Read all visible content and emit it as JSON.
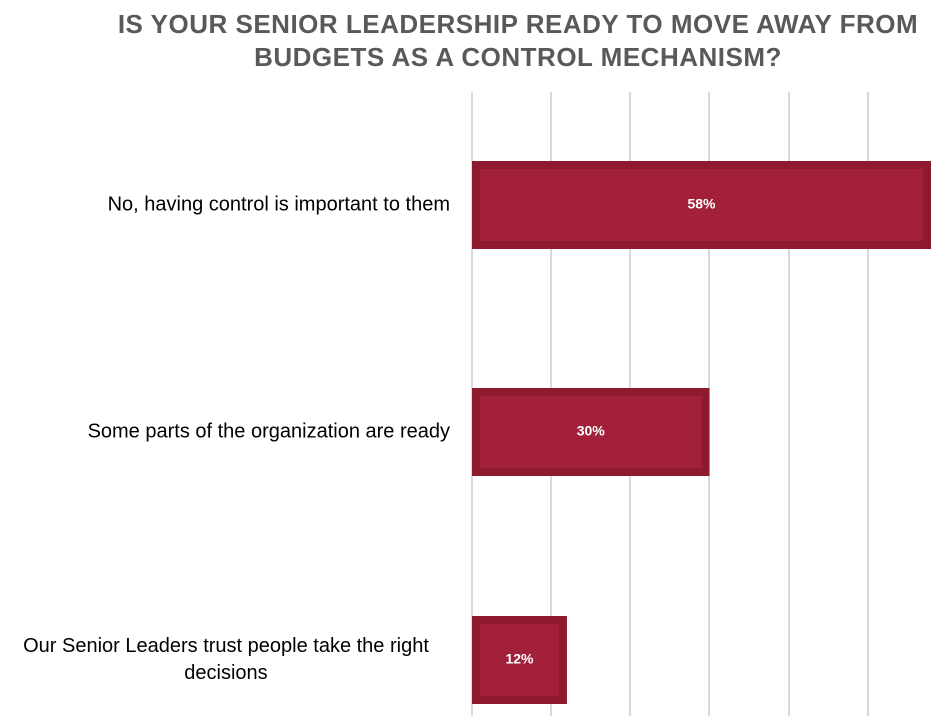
{
  "chart_data": {
    "type": "bar",
    "orientation": "horizontal",
    "title": [
      "IS YOUR SENIOR LEADERSHIP READY TO MOVE AWAY FROM",
      "BUDGETS AS A CONTROL MECHANISM?"
    ],
    "categories": [
      [
        "No, having control is important to them"
      ],
      [
        "Some parts of the organization are ready"
      ],
      [
        "Our Senior Leaders trust people take the right",
        "decisions"
      ]
    ],
    "values": [
      58,
      30,
      12
    ],
    "data_labels": [
      "58%",
      "30%",
      "12%"
    ],
    "xlim": [
      0,
      58
    ],
    "gridline_step": 10,
    "grid": true,
    "legend": "none",
    "colors": {
      "bar": "#a3203a",
      "bar_edge": "#8e1a30",
      "title": "#595959",
      "grid": "#d9d9d9"
    }
  }
}
